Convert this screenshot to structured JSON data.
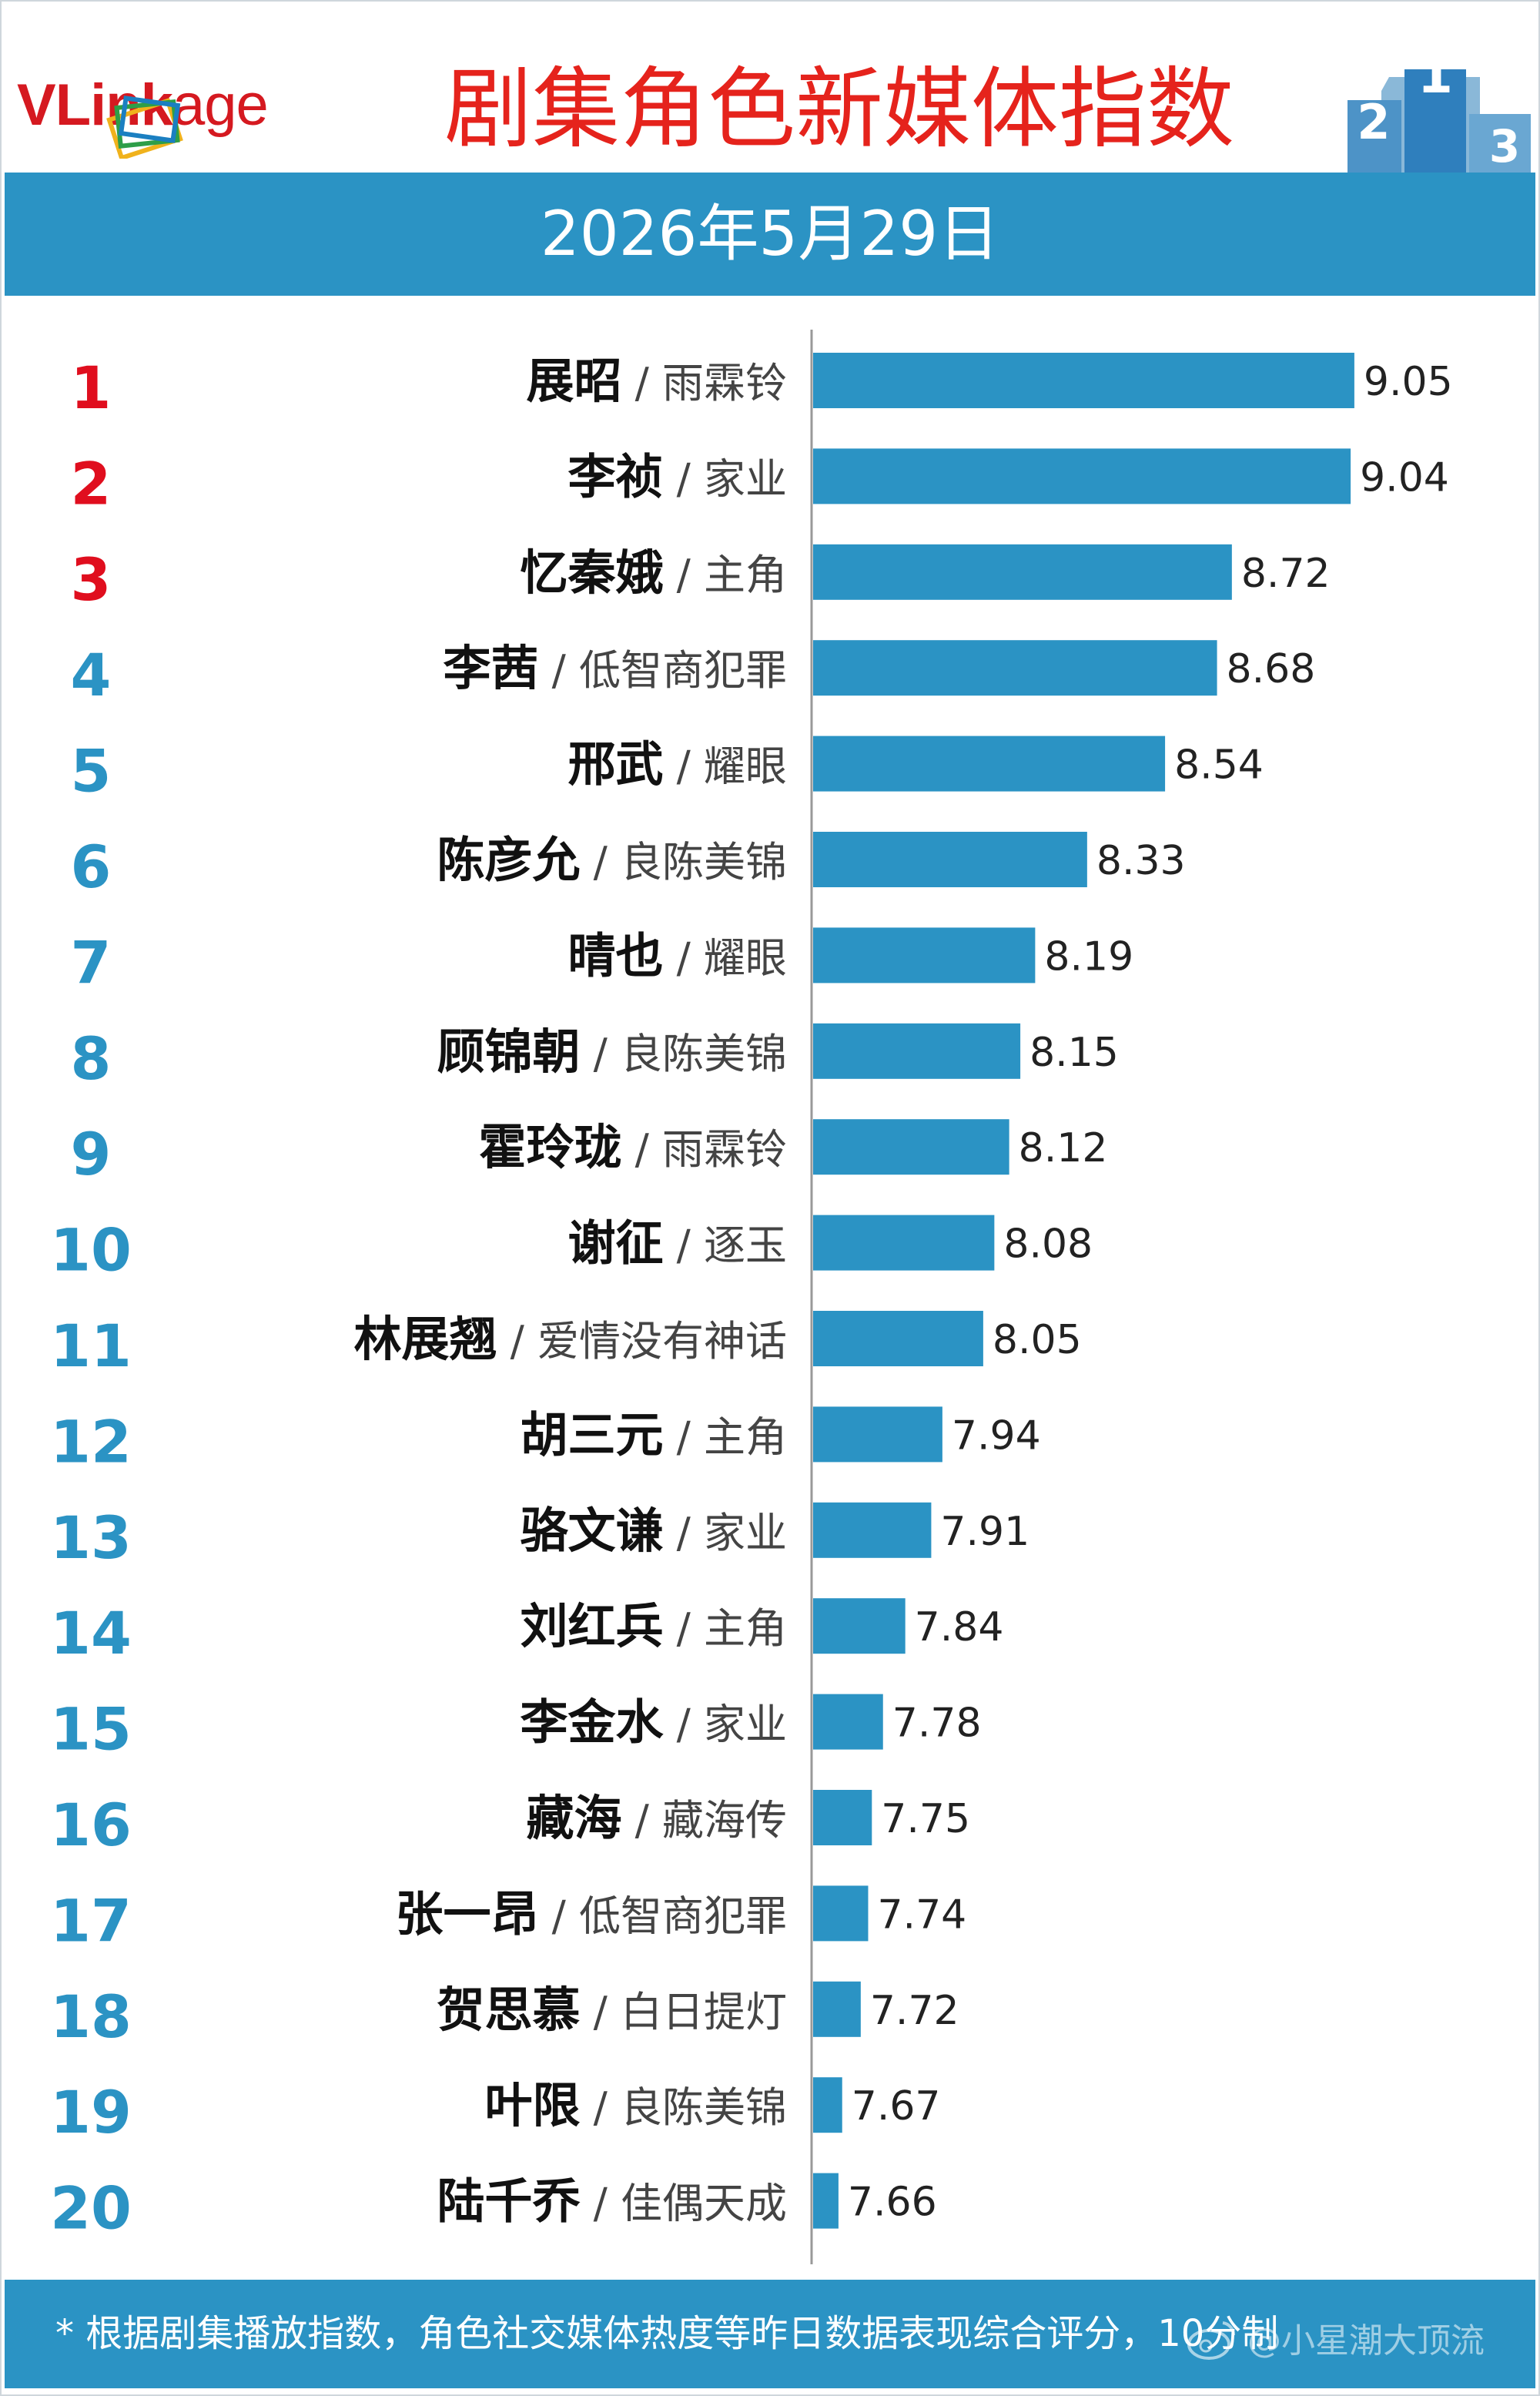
{
  "header": {
    "logo": {
      "v": "V",
      "link": "Link",
      "age": "age"
    },
    "title": "剧集角色新媒体指数",
    "date": "2026年5月29日",
    "podium_labels": [
      "2",
      "1",
      "3"
    ]
  },
  "colors": {
    "bar": "#2b93c4",
    "band": "#2b93c4",
    "title": "#e5231c",
    "top_rank": "#e00e1e",
    "rank": "#2b93c4"
  },
  "chart_data": {
    "type": "bar",
    "orientation": "horizontal",
    "xlim": [
      7.6,
      9.05
    ],
    "grid": false,
    "legend": "none",
    "categories": [
      {
        "rank": "1",
        "role": "展昭",
        "drama": "雨霖铃"
      },
      {
        "rank": "2",
        "role": "李祯",
        "drama": "家业"
      },
      {
        "rank": "3",
        "role": "忆秦娥",
        "drama": "主角"
      },
      {
        "rank": "4",
        "role": "李茜",
        "drama": "低智商犯罪"
      },
      {
        "rank": "5",
        "role": "邢武",
        "drama": "耀眼"
      },
      {
        "rank": "6",
        "role": "陈彦允",
        "drama": "良陈美锦"
      },
      {
        "rank": "7",
        "role": "晴也",
        "drama": "耀眼"
      },
      {
        "rank": "8",
        "role": "顾锦朝",
        "drama": "良陈美锦"
      },
      {
        "rank": "9",
        "role": "霍玲珑",
        "drama": "雨霖铃"
      },
      {
        "rank": "10",
        "role": "谢征",
        "drama": "逐玉"
      },
      {
        "rank": "11",
        "role": "林展翘",
        "drama": "爱情没有神话"
      },
      {
        "rank": "12",
        "role": "胡三元",
        "drama": "主角"
      },
      {
        "rank": "13",
        "role": "骆文谦",
        "drama": "家业"
      },
      {
        "rank": "14",
        "role": "刘红兵",
        "drama": "主角"
      },
      {
        "rank": "15",
        "role": "李金水",
        "drama": "家业"
      },
      {
        "rank": "16",
        "role": "藏海",
        "drama": "藏海传"
      },
      {
        "rank": "17",
        "role": "张一昂",
        "drama": "低智商犯罪"
      },
      {
        "rank": "18",
        "role": "贺思慕",
        "drama": "白日提灯"
      },
      {
        "rank": "19",
        "role": "叶限",
        "drama": "良陈美锦"
      },
      {
        "rank": "20",
        "role": "陆千乔",
        "drama": "佳偶天成"
      }
    ],
    "values": [
      "9.05",
      "9.04",
      "8.72",
      "8.68",
      "8.54",
      "8.33",
      "8.19",
      "8.15",
      "8.12",
      "8.08",
      "8.05",
      "7.94",
      "7.91",
      "7.84",
      "7.78",
      "7.75",
      "7.74",
      "7.72",
      "7.67",
      "7.66"
    ]
  },
  "footer": {
    "note": "* 根据剧集播放指数，角色社交媒体热度等昨日数据表现综合评分，10分制",
    "watermark": "@小星潮大顶流"
  }
}
